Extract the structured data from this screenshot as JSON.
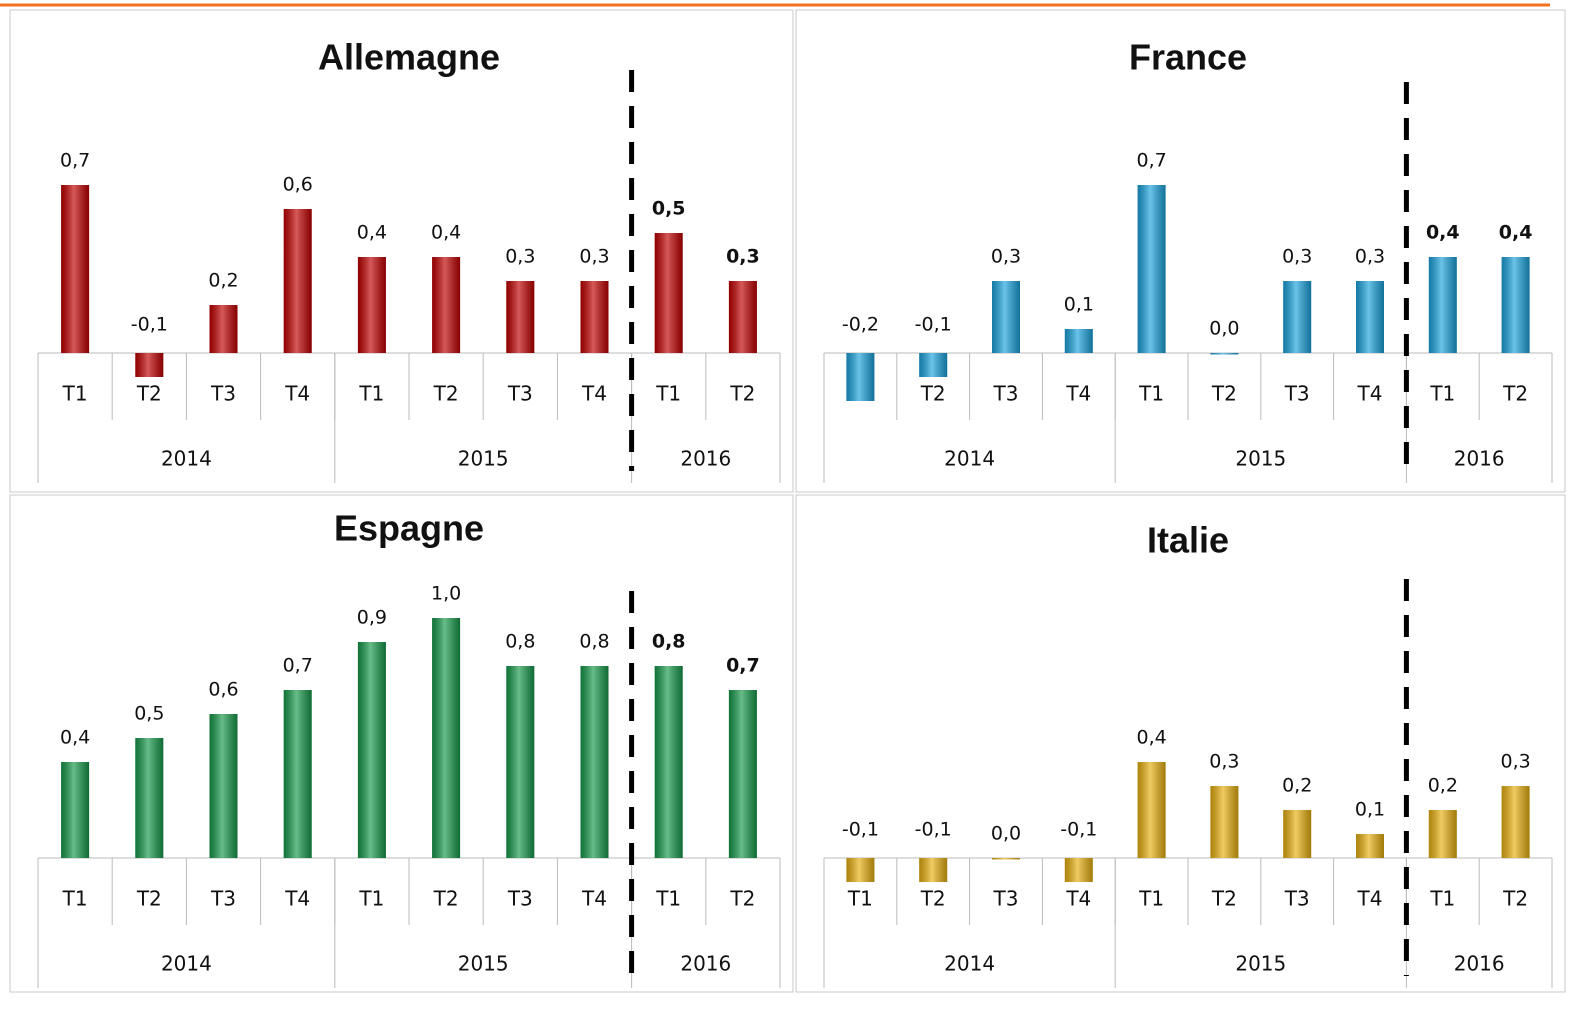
{
  "chart_data": [
    {
      "type": "bar",
      "title": "Allemagne",
      "color": "#c00000",
      "groups": [
        {
          "name": "2014",
          "categories": [
            "T1",
            "T2",
            "T3",
            "T4"
          ]
        },
        {
          "name": "2015",
          "categories": [
            "T1",
            "T2",
            "T3",
            "T4"
          ]
        },
        {
          "name": "2016",
          "categories": [
            "T1",
            "T2"
          ]
        }
      ],
      "values": [
        0.7,
        -0.1,
        0.2,
        0.6,
        0.4,
        0.4,
        0.3,
        0.3,
        0.5,
        0.3
      ],
      "value_labels": [
        "0,7",
        "-0,1",
        "0,2",
        "0,6",
        "0,4",
        "0,4",
        "0,3",
        "0,3",
        "0,5",
        "0,3"
      ]
    },
    {
      "type": "bar",
      "title": "France",
      "color": "#1ba3dc",
      "groups": [
        {
          "name": "2014",
          "categories": [
            "T1",
            "T2",
            "T3",
            "T4"
          ]
        },
        {
          "name": "2015",
          "categories": [
            "T1",
            "T2",
            "T3",
            "T4"
          ]
        },
        {
          "name": "2016",
          "categories": [
            "T1",
            "T2"
          ]
        }
      ],
      "values": [
        -0.2,
        -0.1,
        0.3,
        0.1,
        0.7,
        0.0,
        0.3,
        0.3,
        0.4,
        0.4
      ],
      "value_labels": [
        "-0,2",
        "-0,1",
        "0,3",
        "0,1",
        "0,7",
        "0,0",
        "0,3",
        "0,3",
        "0,4",
        "0,4"
      ]
    },
    {
      "type": "bar",
      "title": "Espagne",
      "color": "#16994a",
      "groups": [
        {
          "name": "2014",
          "categories": [
            "T1",
            "T2",
            "T3",
            "T4"
          ]
        },
        {
          "name": "2015",
          "categories": [
            "T1",
            "T2",
            "T3",
            "T4"
          ]
        },
        {
          "name": "2016",
          "categories": [
            "T1",
            "T2"
          ]
        }
      ],
      "values": [
        0.4,
        0.5,
        0.6,
        0.7,
        0.9,
        1.0,
        0.8,
        0.8,
        0.8,
        0.7
      ],
      "value_labels": [
        "0,4",
        "0,5",
        "0,6",
        "0,7",
        "0,9",
        "1,0",
        "0,8",
        "0,8",
        "0,8",
        "0,7"
      ]
    },
    {
      "type": "bar",
      "title": "Italie",
      "color": "#e8b010",
      "groups": [
        {
          "name": "2014",
          "categories": [
            "T1",
            "T2",
            "T3",
            "T4"
          ]
        },
        {
          "name": "2015",
          "categories": [
            "T1",
            "T2",
            "T3",
            "T4"
          ]
        },
        {
          "name": "2016",
          "categories": [
            "T1",
            "T2"
          ]
        }
      ],
      "values": [
        -0.1,
        -0.1,
        0.0,
        -0.1,
        0.4,
        0.3,
        0.2,
        0.1,
        0.2,
        0.3
      ],
      "value_labels": [
        "-0,1",
        "-0,1",
        "0,0",
        "-0,1",
        "0,4",
        "0,3",
        "0,2",
        "0,1",
        "0,2",
        "0,3"
      ]
    }
  ]
}
